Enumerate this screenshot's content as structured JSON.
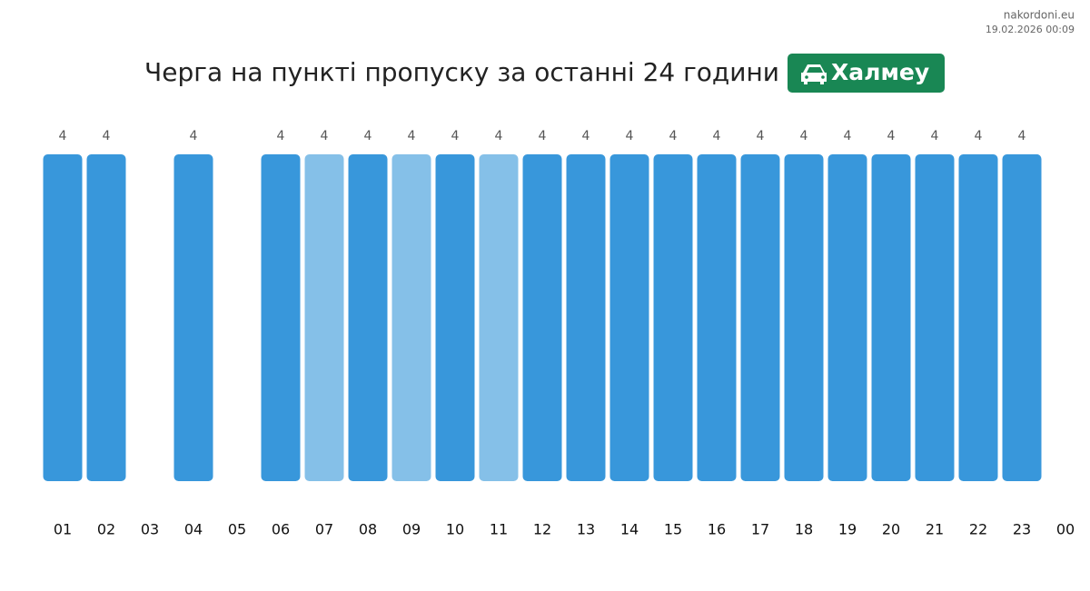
{
  "chart_data": {
    "type": "bar",
    "title": "Черга на пункті пропуску за останні 24 години",
    "badge": "Халмеу",
    "source": "nakordoni.eu",
    "timestamp": "19.02.2026 00:09",
    "categories": [
      "01",
      "02",
      "03",
      "04",
      "05",
      "06",
      "07",
      "08",
      "09",
      "10",
      "11",
      "12",
      "13",
      "14",
      "15",
      "16",
      "17",
      "18",
      "19",
      "20",
      "21",
      "22",
      "23",
      "00"
    ],
    "values": [
      4,
      4,
      null,
      4,
      null,
      4,
      4,
      4,
      4,
      4,
      4,
      4,
      4,
      4,
      4,
      4,
      4,
      4,
      4,
      4,
      4,
      4,
      4,
      null
    ],
    "colors": [
      "#3897db",
      "#3897db",
      null,
      "#3897db",
      null,
      "#3897db",
      "#85c0e8",
      "#3897db",
      "#85c0e8",
      "#3897db",
      "#85c0e8",
      "#3897db",
      "#3897db",
      "#3897db",
      "#3897db",
      "#3897db",
      "#3897db",
      "#3897db",
      "#3897db",
      "#3897db",
      "#3897db",
      "#3897db",
      "#3897db",
      null
    ]
  }
}
